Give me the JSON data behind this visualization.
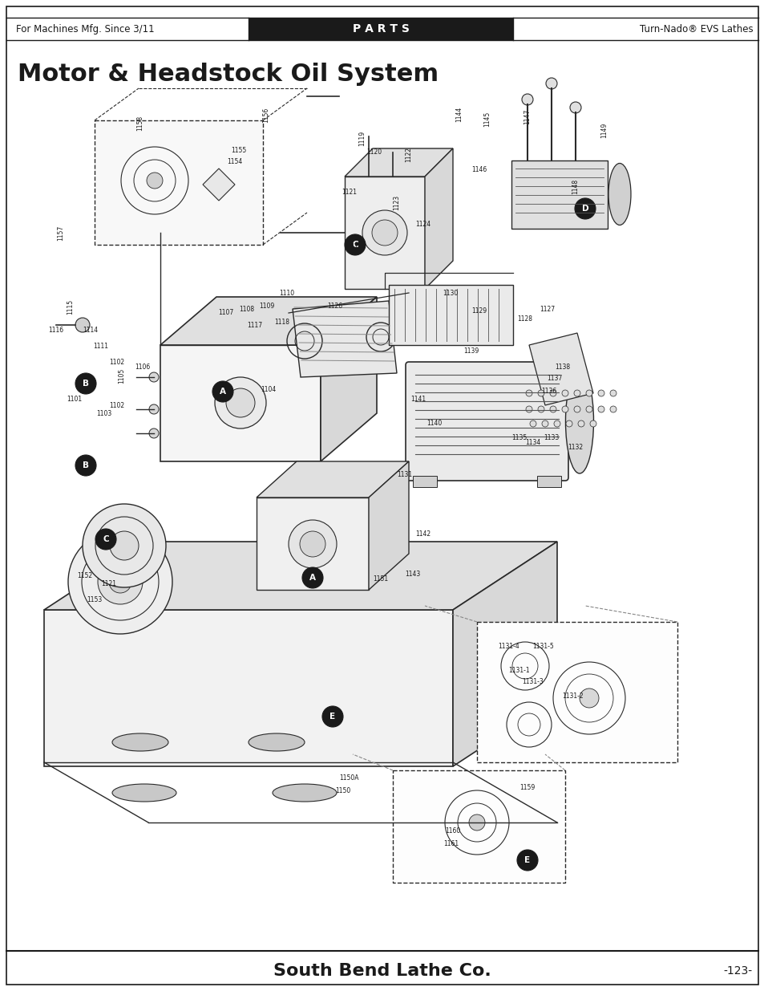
{
  "page_bg": "#ffffff",
  "header_bar_color": "#1a1a1a",
  "header_left_text": "For Machines Mfg. Since 3/11",
  "header_center_text": "P A R T S",
  "header_right_text": "Turn-Nado® EVS Lathes",
  "header_center_text_color": "#ffffff",
  "header_side_text_color": "#1a1a1a",
  "title_text": "Motor & Headstock Oil System",
  "title_color": "#1a1a1a",
  "footer_company": "South Bend Lathe Co.",
  "footer_registered": "®",
  "footer_page": "-123-",
  "footer_color": "#1a1a1a",
  "border_color": "#1a1a1a"
}
